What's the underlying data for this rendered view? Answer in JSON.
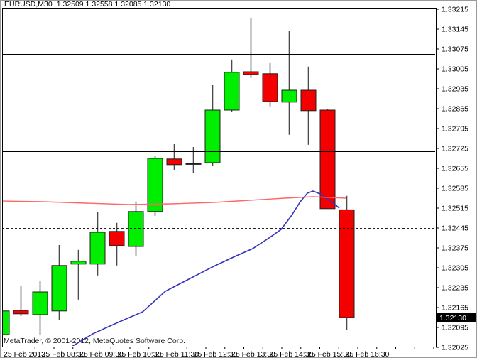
{
  "window": {
    "title_symbol": "EURUSD,M30",
    "title_ohlc": "1.32509 1.32558 1.32085 1.32130",
    "copyright": "MetaTrader, © 2001-2012, MetaQuotes Software Corp."
  },
  "colors": {
    "background": "#ffffff",
    "chart_border": "#000000",
    "bull_candle": "#00ee00",
    "bear_candle": "#f40000",
    "candle_outline": "#1f1f1f",
    "wick": "#4a4a4a",
    "ma_fast": "#3333bb",
    "ma_slow": "#ff6666",
    "line_object": "#000000",
    "price_tag_bg": "#000000",
    "price_tag_text": "#ffffff",
    "axis_text": "#000000"
  },
  "price_scale": {
    "current_price": "1.32130",
    "labels": [
      "1.33215",
      "1.33145",
      "1.33075",
      "1.33005",
      "1.32935",
      "1.32865",
      "1.32795",
      "1.32725",
      "1.32655",
      "1.32585",
      "1.32515",
      "1.32445",
      "1.32375",
      "1.32305",
      "1.32235",
      "1.32165",
      "1.32095",
      "1.32025"
    ]
  },
  "time_scale": {
    "labels": [
      "25 Feb 2013",
      "25 Feb 08:30",
      "25 Feb 09:30",
      "25 Feb 10:30",
      "25 Feb 11:30",
      "25 Feb 12:30",
      "25 Feb 13:30",
      "25 Feb 14:30",
      "25 Feb 15:30",
      "25 Feb 16:30"
    ]
  },
  "chart_data": {
    "type": "candlestick",
    "title": "EURUSD,M30",
    "symbol": "EURUSD",
    "period": "M30",
    "date": "25 Feb 2013",
    "last_bar_ohlc": {
      "open": 1.32509,
      "high": 1.32558,
      "low": 1.32085,
      "close": 1.3213
    },
    "ylabel": "",
    "xlabel": "",
    "ylim": [
      1.32025,
      1.33215
    ],
    "y_tick_step": 0.0007,
    "grid": false,
    "legend_position": "none",
    "candles": [
      {
        "time": "07:30",
        "open": 1.3207,
        "high": 1.32188,
        "low": 1.3207,
        "close": 1.32153
      },
      {
        "time": "08:00",
        "open": 1.32155,
        "high": 1.3224,
        "low": 1.32135,
        "close": 1.32143
      },
      {
        "time": "08:30",
        "open": 1.3214,
        "high": 1.3226,
        "low": 1.3207,
        "close": 1.3222
      },
      {
        "time": "09:00",
        "open": 1.32153,
        "high": 1.32385,
        "low": 1.3212,
        "close": 1.32313
      },
      {
        "time": "09:30",
        "open": 1.32318,
        "high": 1.32368,
        "low": 1.32193,
        "close": 1.32328
      },
      {
        "time": "10:00",
        "open": 1.32318,
        "high": 1.325,
        "low": 1.32278,
        "close": 1.3243
      },
      {
        "time": "10:30",
        "open": 1.32433,
        "high": 1.32463,
        "low": 1.32313,
        "close": 1.32383
      },
      {
        "time": "11:00",
        "open": 1.3238,
        "high": 1.32538,
        "low": 1.32348,
        "close": 1.32503
      },
      {
        "time": "11:30",
        "open": 1.32503,
        "high": 1.327,
        "low": 1.32488,
        "close": 1.3269
      },
      {
        "time": "12:00",
        "open": 1.32688,
        "high": 1.3274,
        "low": 1.3265,
        "close": 1.32668
      },
      {
        "time": "12:30",
        "open": 1.3267,
        "high": 1.3273,
        "low": 1.3264,
        "close": 1.32672
      },
      {
        "time": "13:00",
        "open": 1.32675,
        "high": 1.32948,
        "low": 1.32663,
        "close": 1.3286
      },
      {
        "time": "13:30",
        "open": 1.3286,
        "high": 1.33038,
        "low": 1.32853,
        "close": 1.32993
      },
      {
        "time": "14:00",
        "open": 1.32995,
        "high": 1.33183,
        "low": 1.32973,
        "close": 1.32985
      },
      {
        "time": "14:30",
        "open": 1.32988,
        "high": 1.33028,
        "low": 1.32873,
        "close": 1.3289
      },
      {
        "time": "15:00",
        "open": 1.32888,
        "high": 1.3314,
        "low": 1.32773,
        "close": 1.3293
      },
      {
        "time": "15:30",
        "open": 1.3293,
        "high": 1.33013,
        "low": 1.32738,
        "close": 1.32858
      },
      {
        "time": "16:00",
        "open": 1.3286,
        "high": 1.32863,
        "low": 1.32513,
        "close": 1.32513
      },
      {
        "time": "16:30",
        "open": 1.32509,
        "high": 1.32558,
        "low": 1.32085,
        "close": 1.3213
      }
    ],
    "hlines": [
      {
        "price": 1.33055,
        "style": "solid"
      },
      {
        "price": 1.32715,
        "style": "solid"
      },
      {
        "price": 1.32443,
        "style": "dashed"
      }
    ],
    "moving_averages": [
      {
        "name": "ma-fast-blue",
        "color": "#3333bb",
        "points": [
          [
            96,
            1.32018
          ],
          [
            100,
            1.320275
          ],
          [
            130,
            1.32073
          ],
          [
            165,
            1.321125
          ],
          [
            200,
            1.3215
          ],
          [
            232,
            1.322225
          ],
          [
            265,
            1.32265
          ],
          [
            300,
            1.3231
          ],
          [
            330,
            1.32345
          ],
          [
            355,
            1.323725
          ],
          [
            378,
            1.3241
          ],
          [
            395,
            1.3244
          ],
          [
            410,
            1.3249
          ],
          [
            422,
            1.325375
          ],
          [
            432,
            1.325675
          ],
          [
            440,
            1.32575
          ],
          [
            450,
            1.32565
          ],
          [
            462,
            1.32545
          ],
          [
            470,
            1.3253
          ],
          [
            477,
            1.32515
          ]
        ]
      },
      {
        "name": "ma-slow-red",
        "color": "#ff6666",
        "points": [
          [
            2,
            1.3254
          ],
          [
            60,
            1.325375
          ],
          [
            120,
            1.325325
          ],
          [
            180,
            1.325275
          ],
          [
            240,
            1.3253
          ],
          [
            300,
            1.32535
          ],
          [
            350,
            1.325425
          ],
          [
            400,
            1.3255
          ],
          [
            440,
            1.32555
          ],
          [
            487,
            1.3255
          ]
        ]
      }
    ]
  }
}
